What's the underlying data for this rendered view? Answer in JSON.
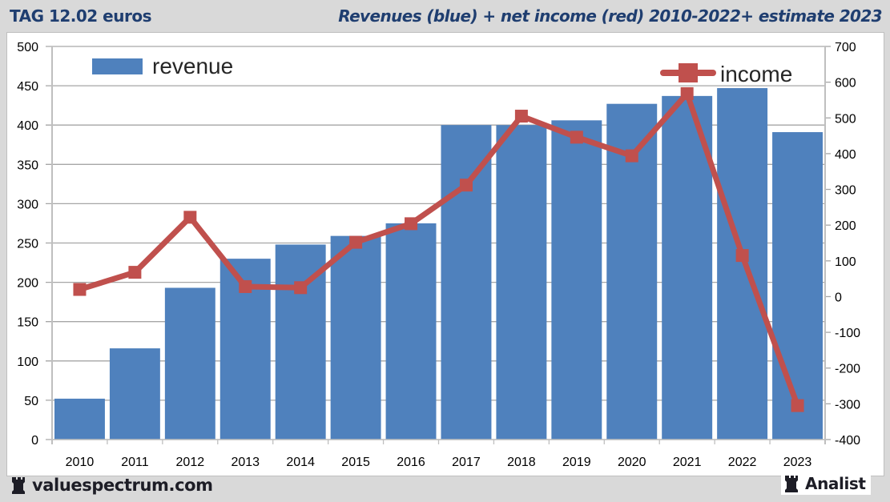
{
  "header": {
    "left_title": "TAG 12.02 euros",
    "right_title": "Revenues (blue) + net income (red) 2010-2022+ estimate 2023"
  },
  "footer": {
    "brand_left": "valuespectrum.com",
    "brand_right": "Analist",
    "brand_icon": "rook-icon"
  },
  "colors": {
    "revenue": "#4f81bd",
    "income": "#c0504d",
    "title": "#1f3e70",
    "grid": "#a6a6a6"
  },
  "chart_data": {
    "type": "bar+line",
    "title": "Revenues (blue) + net income (red) 2010-2022+ estimate 2023",
    "categories": [
      "2010",
      "2011",
      "2012",
      "2013",
      "2014",
      "2015",
      "2016",
      "2017",
      "2018",
      "2019",
      "2020",
      "2021",
      "2022",
      "2023"
    ],
    "series": [
      {
        "name": "revenue",
        "type": "bar",
        "axis": "left",
        "values": [
          52,
          116,
          193,
          230,
          248,
          259,
          275,
          400,
          400,
          406,
          427,
          437,
          447,
          391
        ]
      },
      {
        "name": "income",
        "type": "line",
        "axis": "right",
        "values": [
          20,
          68,
          222,
          28,
          25,
          152,
          204,
          312,
          505,
          446,
          394,
          568,
          115,
          -305
        ]
      }
    ],
    "left_axis": {
      "ylim": [
        0,
        500
      ],
      "ticks": [
        "500",
        "450",
        "400",
        "350",
        "300",
        "250",
        "200",
        "150",
        "100",
        "50",
        "0"
      ]
    },
    "right_axis": {
      "ylim": [
        -400,
        700
      ],
      "ticks": [
        "700",
        "600",
        "500",
        "400",
        "300",
        "200",
        "100",
        "0",
        "-100",
        "-200",
        "-300",
        "-400"
      ]
    },
    "legend": [
      {
        "label": "revenue",
        "placement": "top-left"
      },
      {
        "label": "income",
        "placement": "top-right"
      }
    ],
    "grid": true,
    "xlabel": "",
    "ylabel": ""
  }
}
